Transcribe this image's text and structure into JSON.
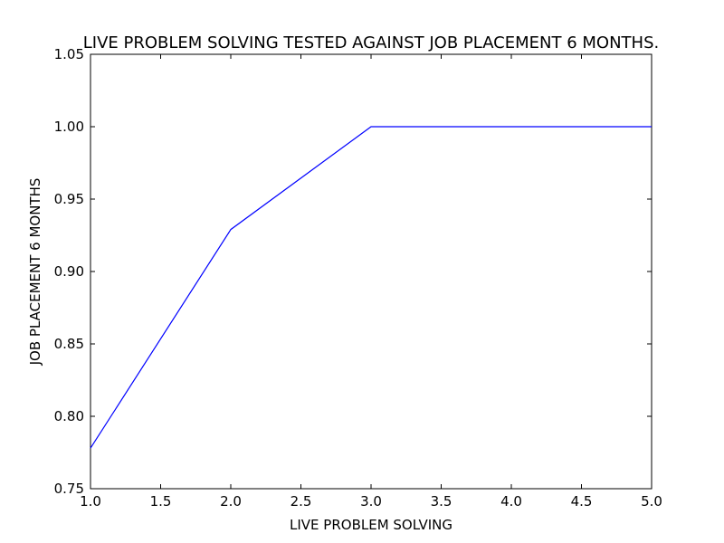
{
  "chart_data": {
    "type": "line",
    "title": "LIVE PROBLEM SOLVING TESTED AGAINST JOB PLACEMENT 6 MONTHS.",
    "xlabel": "LIVE PROBLEM SOLVING",
    "ylabel": "JOB PLACEMENT 6 MONTHS",
    "xlim": [
      1.0,
      5.0
    ],
    "ylim": [
      0.75,
      1.05
    ],
    "xticks": [
      "1.0",
      "1.5",
      "2.0",
      "2.5",
      "3.0",
      "3.5",
      "4.0",
      "4.5",
      "5.0"
    ],
    "yticks": [
      "0.75",
      "0.80",
      "0.85",
      "0.90",
      "0.95",
      "1.00",
      "1.05"
    ],
    "grid": false,
    "series": [
      {
        "color": "#0000ff",
        "x": [
          1.0,
          2.0,
          3.0,
          4.0,
          5.0
        ],
        "y": [
          0.778,
          0.929,
          1.0,
          1.0,
          1.0
        ]
      }
    ]
  }
}
